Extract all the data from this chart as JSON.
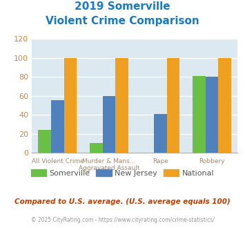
{
  "title_line1": "2019 Somerville",
  "title_line2": "Violent Crime Comparison",
  "title_color": "#1a7abf",
  "somerville": [
    24,
    10,
    0,
    81
  ],
  "new_jersey": [
    55,
    60,
    41,
    80
  ],
  "national": [
    100,
    100,
    100,
    100
  ],
  "colors": {
    "somerville": "#6abf45",
    "new_jersey": "#4f81bd",
    "national": "#f0a020"
  },
  "ylim": [
    0,
    120
  ],
  "yticks": [
    0,
    20,
    40,
    60,
    80,
    100,
    120
  ],
  "footnote1": "Compared to U.S. average. (U.S. average equals 100)",
  "footnote2": "© 2025 CityRating.com - https://www.cityrating.com/crime-statistics/",
  "footnote1_color": "#c04000",
  "footnote2_color": "#999999",
  "background_color": "#dce9f0",
  "fig_background": "#ffffff",
  "legend_labels": [
    "Somerville",
    "New Jersey",
    "National"
  ],
  "row1_labels": [
    "",
    "Murder & Mans...",
    "",
    ""
  ],
  "row2_labels": [
    "All Violent Crime",
    "Aggravated Assault",
    "Rape",
    "Robbery"
  ],
  "bar_width": 0.25,
  "grid_color": "#ffffff",
  "tick_color": "#cc8844",
  "ytick_fontsize": 8
}
